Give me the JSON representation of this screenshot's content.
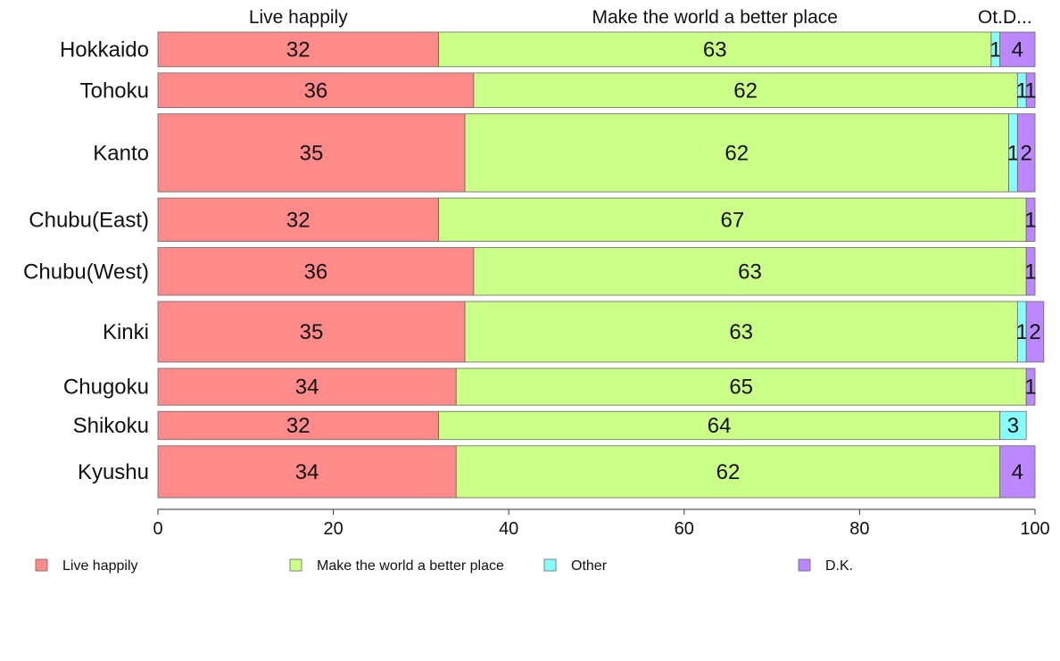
{
  "chart_data": {
    "type": "bar",
    "orientation": "horizontal",
    "stacked": true,
    "categories": [
      "Hokkaido",
      "Tohoku",
      "Kanto",
      "Chubu(East)",
      "Chubu(West)",
      "Kinki",
      "Chugoku",
      "Shikoku",
      "Kyushu"
    ],
    "series": [
      {
        "name": "Live happily",
        "color": "#ff8a8a",
        "values": [
          32,
          36,
          35,
          32,
          36,
          35,
          34,
          32,
          34
        ],
        "labels": [
          "32",
          "36",
          "35",
          "32",
          "36",
          "35",
          "34",
          "32",
          "34"
        ]
      },
      {
        "name": "Make the world a better place",
        "color": "#ccff88",
        "values": [
          63,
          62,
          62,
          67,
          63,
          63,
          65,
          64,
          62
        ],
        "labels": [
          "63",
          "62",
          "62",
          "67",
          "63",
          "63",
          "65",
          "64",
          "62"
        ]
      },
      {
        "name": "Other",
        "color": "#88ffff",
        "values": [
          1,
          1,
          1,
          0,
          0,
          1,
          0,
          3,
          0
        ],
        "labels": [
          "1",
          "1",
          "1",
          "",
          "",
          "1",
          "",
          "3",
          ""
        ]
      },
      {
        "name": "D.K.",
        "color": "#bb88ff",
        "values": [
          4,
          1,
          2,
          1,
          1,
          2,
          1,
          0,
          4
        ],
        "labels": [
          "4",
          "1",
          "2",
          "1",
          "1",
          "2",
          "1",
          "",
          "4"
        ]
      }
    ],
    "top_labels": [
      "Live happily",
      "Make the world a better place",
      "Ot...",
      "D..."
    ],
    "bar_heights_relative": [
      1.6,
      1.6,
      3.6,
      2.0,
      2.2,
      2.8,
      1.7,
      1.3,
      2.4
    ],
    "xlim": [
      0,
      100
    ],
    "xticks": [
      0,
      20,
      40,
      60,
      80,
      100
    ],
    "xtick_labels": [
      "0",
      "20",
      "40",
      "60",
      "80",
      "100"
    ],
    "grid": false,
    "legend_position": "bottom",
    "title": "",
    "xlabel": "",
    "ylabel": ""
  }
}
